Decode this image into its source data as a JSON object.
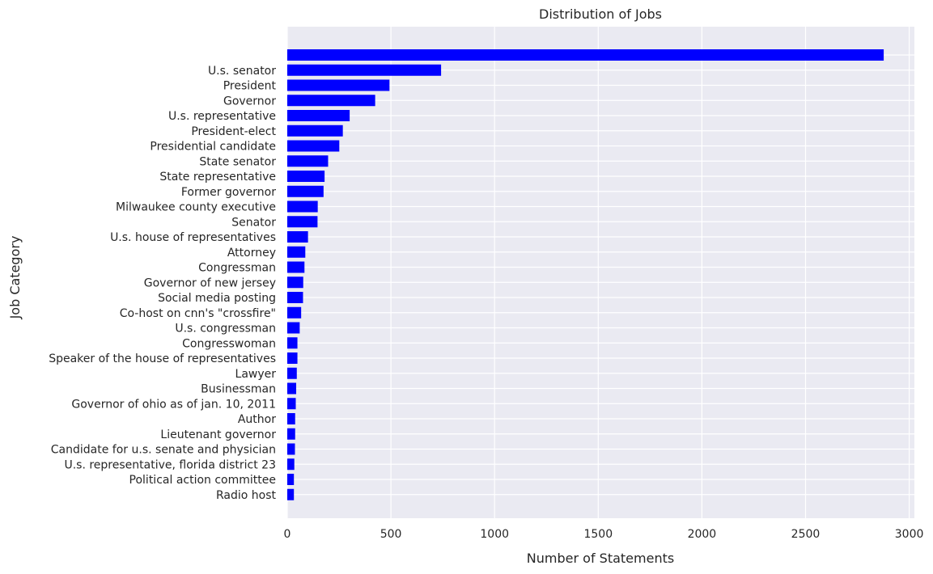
{
  "chart_data": {
    "type": "bar",
    "orientation": "horizontal",
    "title": "Distribution of Jobs",
    "xlabel": "Number of Statements",
    "ylabel": "Job Category",
    "xlim": [
      0,
      3025
    ],
    "xticks": [
      0,
      500,
      1000,
      1500,
      2000,
      2500,
      3000
    ],
    "grid": true,
    "bar_color": "#0000ff",
    "plot_background": "#eaeaf2",
    "categories": [
      "",
      "U.s. senator",
      "President",
      "Governor",
      "U.s. representative",
      "President-elect",
      "Presidential candidate",
      "State senator",
      "State representative",
      "Former governor",
      "Milwaukee county executive",
      "Senator",
      "U.s. house of representatives",
      "Attorney",
      "Congressman",
      "Governor of new jersey",
      "Social media posting",
      "Co-host on cnn's \"crossfire\"",
      "U.s. congressman",
      "Congresswoman",
      "Speaker of the house of representatives",
      "Lawyer",
      "Businessman",
      "Governor of ohio as of jan. 10, 2011",
      "Author",
      "Lieutenant governor",
      "Candidate for u.s. senate and physician",
      "U.s. representative, florida district 23",
      "Political action committee",
      "Radio host"
    ],
    "values": [
      2877,
      742,
      493,
      424,
      301,
      268,
      251,
      197,
      180,
      175,
      147,
      146,
      100,
      87,
      83,
      77,
      76,
      67,
      60,
      49,
      49,
      46,
      43,
      41,
      38,
      38,
      37,
      34,
      32,
      32
    ]
  }
}
